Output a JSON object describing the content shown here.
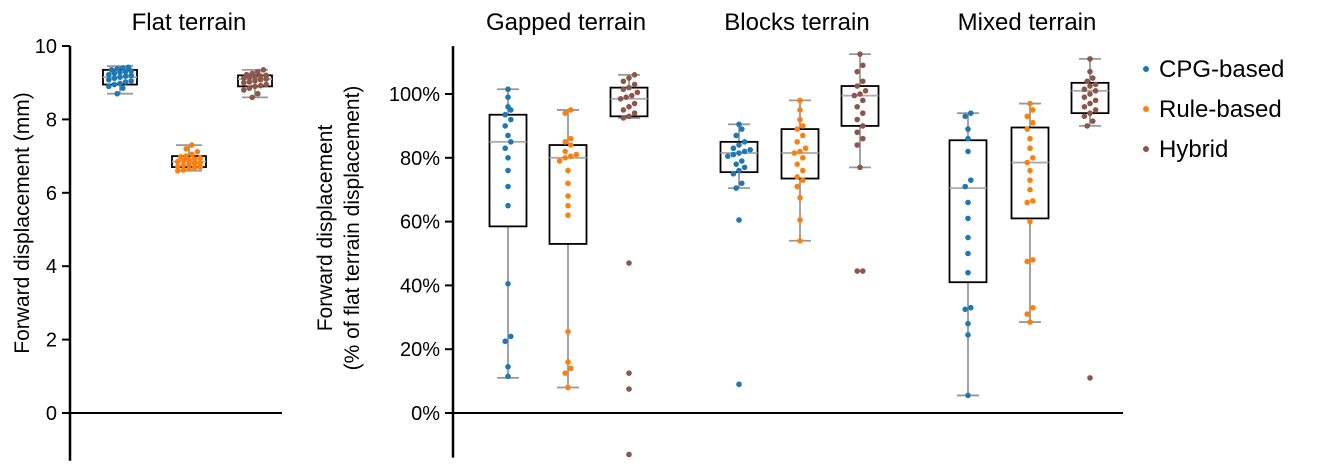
{
  "colors": {
    "cpg": "#1f77b4",
    "rule": "#ff7f0e",
    "hybrid": "#8c564b",
    "whisker": "#999999",
    "median": "#aaaaaa"
  },
  "legend": [
    {
      "label": "CPG-based",
      "color": "#1f77b4"
    },
    {
      "label": "Rule-based",
      "color": "#ff7f0e"
    },
    {
      "label": "Hybrid",
      "color": "#8c564b"
    }
  ],
  "chart_data": [
    {
      "type": "box-swarm",
      "title": "Flat terrain",
      "ylabel": "Forward displacement (mm)",
      "ylim": [
        -1.3,
        10
      ],
      "yticks": [
        0,
        2,
        4,
        6,
        8,
        10
      ],
      "ytick_labels": [
        "0",
        "2",
        "4",
        "6",
        "8",
        "10"
      ],
      "groups": [
        {
          "name": "CPG-based",
          "box": {
            "whislo": 8.7,
            "q1": 8.95,
            "med": 9.15,
            "q3": 9.35,
            "whishi": 9.45
          },
          "points": [
            9.42,
            9.4,
            9.38,
            9.35,
            9.32,
            9.3,
            9.28,
            9.25,
            9.22,
            9.2,
            9.18,
            9.15,
            9.12,
            9.08,
            9.05,
            9.02,
            8.98,
            8.95,
            8.9,
            8.85,
            8.7
          ]
        },
        {
          "name": "Rule-based",
          "box": {
            "whislo": 6.6,
            "q1": 6.7,
            "med": 6.85,
            "q3": 7.0,
            "whishi": 7.3
          },
          "points": [
            7.3,
            7.2,
            7.12,
            7.05,
            7.0,
            6.98,
            6.95,
            6.92,
            6.9,
            6.88,
            6.85,
            6.82,
            6.8,
            6.78,
            6.75,
            6.72,
            6.7,
            6.68,
            6.65,
            6.62,
            6.6
          ]
        },
        {
          "name": "Hybrid",
          "box": {
            "whislo": 8.6,
            "q1": 8.9,
            "med": 9.1,
            "q3": 9.2,
            "whishi": 9.35
          },
          "points": [
            9.35,
            9.3,
            9.25,
            9.22,
            9.2,
            9.18,
            9.16,
            9.14,
            9.12,
            9.1,
            9.08,
            9.05,
            9.02,
            9.0,
            8.95,
            8.92,
            8.9,
            8.85,
            8.8,
            8.7,
            8.6
          ]
        }
      ]
    },
    {
      "type": "box-swarm",
      "ylabel": [
        "Forward displacement",
        "(% of flat terrain displacement)"
      ],
      "ylim": [
        -14,
        115
      ],
      "yticks": [
        0,
        20,
        40,
        60,
        80,
        100
      ],
      "ytick_labels": [
        "0%",
        "20%",
        "40%",
        "60%",
        "80%",
        "100%"
      ],
      "panels": [
        {
          "title": "Gapped terrain",
          "groups": [
            {
              "name": "CPG-based",
              "box": {
                "whislo": 11,
                "q1": 58.5,
                "med": 85,
                "q3": 93.5,
                "whishi": 101.5
              },
              "points": [
                101.5,
                99,
                96,
                95,
                93.5,
                92,
                90,
                87,
                85,
                83,
                80,
                76,
                71,
                65,
                40.5,
                24,
                22.5,
                14.5,
                11.5
              ]
            },
            {
              "name": "Rule-based",
              "box": {
                "whislo": 8,
                "q1": 53,
                "med": 80,
                "q3": 84,
                "whishi": 95
              },
              "points": [
                95,
                94,
                86,
                85,
                84,
                82,
                81,
                80.5,
                80,
                79,
                76,
                72,
                68,
                65,
                62,
                25.5,
                16,
                14,
                12.5,
                8
              ]
            },
            {
              "name": "Hybrid",
              "box": {
                "whislo": 92.5,
                "q1": 93,
                "med": 98.5,
                "q3": 102,
                "whishi": 106
              },
              "points": [
                106,
                105,
                104,
                103,
                102,
                101.5,
                100.5,
                99.5,
                99,
                98.5,
                97,
                96,
                95,
                94,
                93,
                92.5,
                47,
                12.5,
                7.5,
                -13
              ]
            }
          ]
        },
        {
          "title": "Blocks terrain",
          "groups": [
            {
              "name": "CPG-based",
              "box": {
                "whislo": 70.5,
                "q1": 75.5,
                "med": 81.5,
                "q3": 85,
                "whishi": 90.5
              },
              "points": [
                90.5,
                89,
                87,
                85,
                84,
                83,
                82.5,
                82,
                81.5,
                81,
                80.5,
                79,
                78,
                77,
                76,
                75,
                72,
                70.5,
                60.5,
                9
              ]
            },
            {
              "name": "Rule-based",
              "box": {
                "whislo": 54,
                "q1": 73.5,
                "med": 81.5,
                "q3": 89,
                "whishi": 98
              },
              "points": [
                98,
                95,
                92,
                90,
                89,
                87,
                85,
                83,
                82,
                81.5,
                80,
                78,
                76,
                74,
                73,
                71,
                67.5,
                60.5,
                54
              ]
            },
            {
              "name": "Hybrid",
              "box": {
                "whislo": 77,
                "q1": 90,
                "med": 99.5,
                "q3": 102.5,
                "whishi": 112.5
              },
              "points": [
                112.5,
                109,
                107,
                104,
                102.5,
                101,
                100,
                99.5,
                98,
                96,
                94,
                92,
                90,
                88,
                86,
                84,
                77,
                44.5,
                44.5
              ]
            }
          ]
        },
        {
          "title": "Mixed terrain",
          "groups": [
            {
              "name": "CPG-based",
              "box": {
                "whislo": 5.5,
                "q1": 41,
                "med": 70.5,
                "q3": 85.5,
                "whishi": 94
              },
              "points": [
                94,
                93,
                89,
                86,
                82,
                73,
                71,
                66,
                61,
                55,
                50,
                44,
                33,
                32.5,
                28,
                24.5,
                5.5
              ]
            },
            {
              "name": "Rule-based",
              "box": {
                "whislo": 28.5,
                "q1": 61,
                "med": 78.5,
                "q3": 89.5,
                "whishi": 97
              },
              "points": [
                97,
                95,
                93,
                91,
                89,
                86,
                83,
                80,
                78.5,
                76,
                73,
                70,
                66.5,
                66,
                60,
                48,
                47.5,
                33,
                31,
                28.5
              ]
            },
            {
              "name": "Hybrid",
              "box": {
                "whislo": 90,
                "q1": 94,
                "med": 101,
                "q3": 103.5,
                "whishi": 111
              },
              "points": [
                111,
                107,
                105,
                104,
                103,
                102.5,
                101.5,
                101,
                100,
                99,
                98,
                97,
                96,
                95,
                94,
                93,
                91.5,
                90,
                11
              ]
            }
          ]
        }
      ]
    }
  ]
}
